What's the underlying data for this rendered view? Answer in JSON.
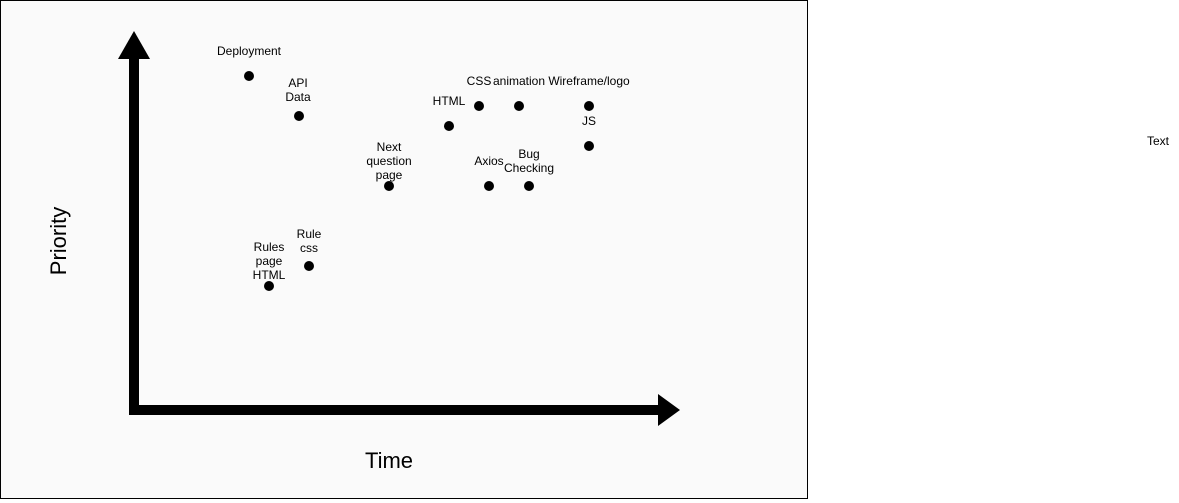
{
  "axes": {
    "y_label": "Priority",
    "x_label": "Time"
  },
  "stray_label": "Text",
  "items": [
    {
      "label": "Deployment"
    },
    {
      "label": "API\nData"
    },
    {
      "label": "HTML"
    },
    {
      "label": "CSS"
    },
    {
      "label": "animation"
    },
    {
      "label": "Wireframe/logo"
    },
    {
      "label": "JS"
    },
    {
      "label": "Next\nquestion\npage"
    },
    {
      "label": "Axios"
    },
    {
      "label": "Bug\nChecking"
    },
    {
      "label": "Rule\ncss"
    },
    {
      "label": "Rules\npage\nHTML"
    }
  ],
  "colors": {
    "ink": "#000000",
    "canvas": "#fafafa"
  }
}
